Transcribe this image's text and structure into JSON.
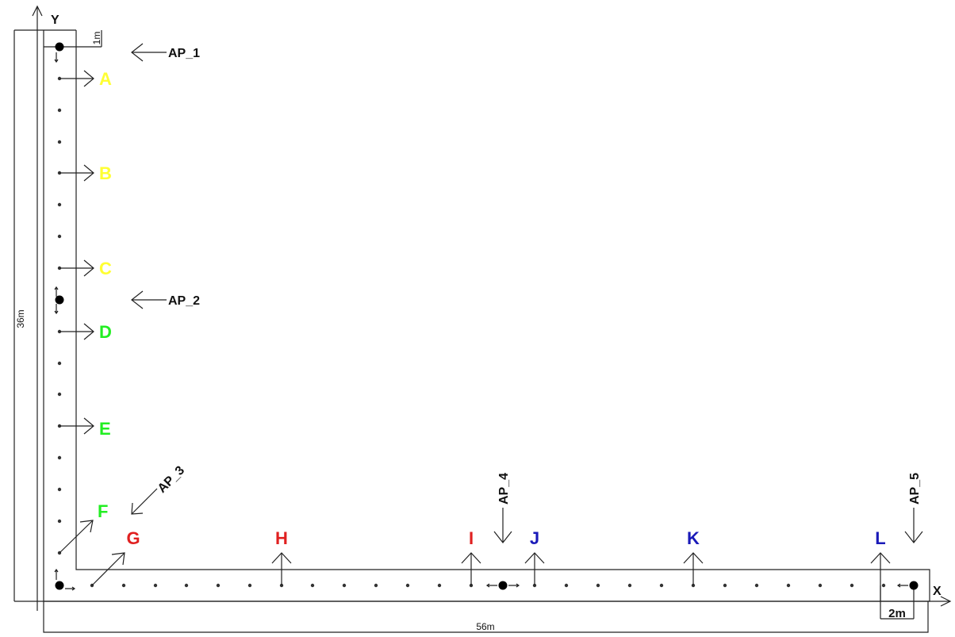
{
  "axes": {
    "x_label": "X",
    "y_label": "Y"
  },
  "dimensions": {
    "width": "56m",
    "height": "36m",
    "corridor_width": "1m",
    "ap5_offset": "2m"
  },
  "points": [
    {
      "label": "A",
      "color": "#ffff33"
    },
    {
      "label": "B",
      "color": "#ffff33"
    },
    {
      "label": "C",
      "color": "#ffff33"
    },
    {
      "label": "D",
      "color": "#22ee22"
    },
    {
      "label": "E",
      "color": "#22ee22"
    },
    {
      "label": "F",
      "color": "#22ee22"
    },
    {
      "label": "G",
      "color": "#e02020"
    },
    {
      "label": "H",
      "color": "#e02020"
    },
    {
      "label": "I",
      "color": "#e02020"
    },
    {
      "label": "J",
      "color": "#1a1ab8"
    },
    {
      "label": "K",
      "color": "#1a1ab8"
    },
    {
      "label": "L",
      "color": "#1a1ab8"
    }
  ],
  "access_points": [
    {
      "label": "AP_1"
    },
    {
      "label": "AP_2"
    },
    {
      "label": "AP_3"
    },
    {
      "label": "AP_4"
    },
    {
      "label": "AP_5"
    }
  ]
}
